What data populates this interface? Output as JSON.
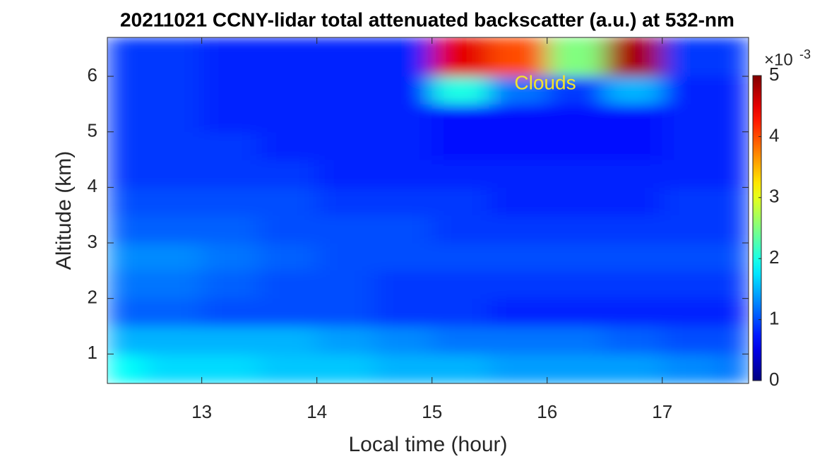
{
  "chart_data": {
    "type": "heatmap",
    "title": "20211021 CCNY-lidar total attenuated backscatter (a.u.) at 532-nm",
    "x_label": "Local time (hour)",
    "y_label": "Altitude (km)",
    "x_edges": [
      12.18,
      12.5,
      13,
      13.5,
      14,
      14.5,
      15,
      15.5,
      16,
      16.5,
      17,
      17.5,
      17.75
    ],
    "y_edges": [
      0.47,
      1,
      1.5,
      2,
      2.5,
      3,
      3.5,
      4,
      4.5,
      5,
      5.5,
      6,
      6.7
    ],
    "z": [
      [
        1.9,
        1.7,
        1.7,
        1.6,
        1.6,
        1.5,
        1.5,
        1.4,
        1.4,
        1.4,
        1.3,
        1.2
      ],
      [
        1.5,
        1.5,
        1.5,
        1.5,
        1.4,
        1.3,
        1.2,
        1.2,
        1.2,
        1.1,
        1.0,
        1.0
      ],
      [
        1.1,
        1.1,
        1.0,
        1.0,
        1.0,
        0.9,
        0.9,
        0.8,
        0.8,
        0.8,
        0.8,
        0.8
      ],
      [
        1.2,
        1.2,
        1.1,
        1.0,
        1.0,
        0.9,
        0.9,
        0.9,
        0.9,
        0.9,
        0.9,
        0.9
      ],
      [
        1.3,
        1.3,
        1.2,
        1.1,
        1.0,
        1.0,
        1.0,
        1.0,
        1.0,
        1.0,
        1.0,
        1.0
      ],
      [
        1.1,
        1.1,
        1.1,
        1.0,
        1.0,
        1.0,
        0.9,
        0.9,
        0.9,
        0.9,
        0.9,
        0.9
      ],
      [
        1.0,
        1.0,
        1.0,
        1.0,
        0.9,
        0.9,
        0.9,
        0.8,
        0.8,
        0.8,
        0.9,
        0.9
      ],
      [
        0.9,
        0.9,
        0.9,
        0.9,
        0.8,
        0.8,
        0.8,
        0.8,
        0.8,
        0.8,
        0.8,
        0.8
      ],
      [
        0.9,
        0.9,
        0.9,
        0.8,
        0.8,
        0.8,
        0.7,
        0.7,
        0.7,
        0.7,
        0.8,
        0.8
      ],
      [
        0.9,
        0.9,
        0.8,
        0.8,
        0.8,
        0.8,
        0.7,
        0.7,
        0.7,
        0.7,
        0.8,
        0.8
      ],
      [
        0.9,
        0.9,
        0.8,
        0.8,
        0.8,
        0.8,
        2.0,
        1.2,
        0.9,
        1.5,
        0.8,
        0.8
      ],
      [
        0.9,
        0.9,
        0.8,
        0.8,
        0.8,
        0.8,
        4.5,
        4.0,
        2.5,
        4.8,
        0.9,
        0.9
      ]
    ],
    "colormap": "jet",
    "xlim": [
      12.18,
      17.75
    ],
    "ylim": [
      0.47,
      6.7
    ],
    "xticks": [
      13,
      14,
      15,
      16,
      17
    ],
    "yticks": [
      1,
      2,
      3,
      4,
      5,
      6
    ],
    "clim": [
      0,
      5
    ],
    "cticks": [
      0,
      1,
      2,
      3,
      4,
      5
    ],
    "colorbar_multiplier": {
      "base": "×10",
      "power": "-3"
    },
    "annotation": {
      "text": "Clouds",
      "color": "#f2e52e"
    }
  }
}
